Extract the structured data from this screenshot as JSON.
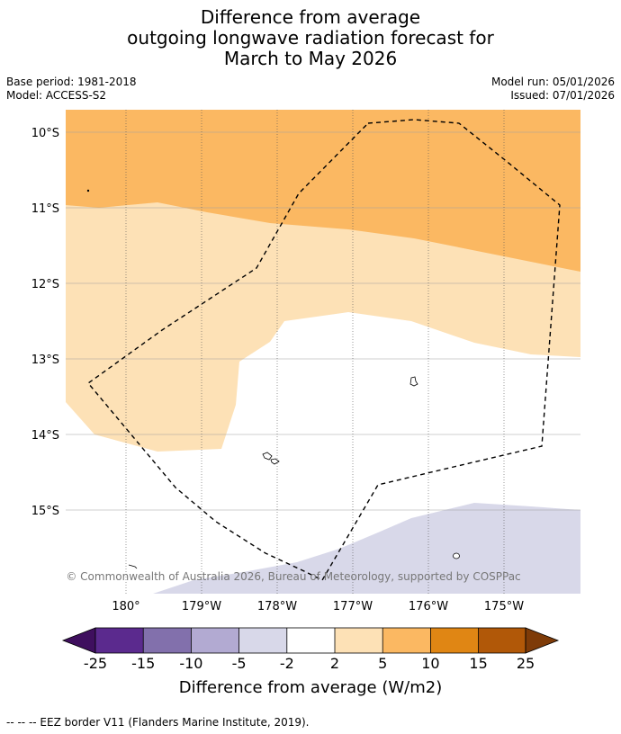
{
  "title": {
    "line1": "Difference from average",
    "line2": "outgoing longwave radiation forecast for",
    "line3": "March to May 2026"
  },
  "meta": {
    "base_period": "Base period: 1981-2018",
    "model": "Model: ACCESS-S2",
    "model_run": "Model run: 05/01/2026",
    "issued": "Issued: 07/01/2026"
  },
  "map": {
    "lat_labels": [
      "10°S",
      "11°S",
      "12°S",
      "13°S",
      "14°S",
      "15°S"
    ],
    "lon_labels": [
      "180°",
      "179°W",
      "178°W",
      "177°W",
      "176°W",
      "175°W"
    ],
    "copyright": "© Commonwealth of Australia 2026, Bureau of Meteorology, supported by COSPPac",
    "colors": {
      "land_bg": "#ffffff",
      "band_5_10": "#fbb862",
      "band_2_5": "#fde1b6",
      "band_neg5_neg2": "#d8d8e9"
    }
  },
  "colorbar": {
    "ticks": [
      "-25",
      "-15",
      "-10",
      "-5",
      "-2",
      "2",
      "5",
      "10",
      "15",
      "25"
    ],
    "colors": [
      "#3f0f5e",
      "#5b2a8e",
      "#8270ac",
      "#b2aad2",
      "#d8d8e9",
      "#ffffff",
      "#fde1b6",
      "#fbb862",
      "#e08614",
      "#b15808",
      "#7e3b08"
    ],
    "label": "Difference from average (W/m2)"
  },
  "footnote": "--  --  -- EEZ border V11 (Flanders Marine Institute, 2019)."
}
